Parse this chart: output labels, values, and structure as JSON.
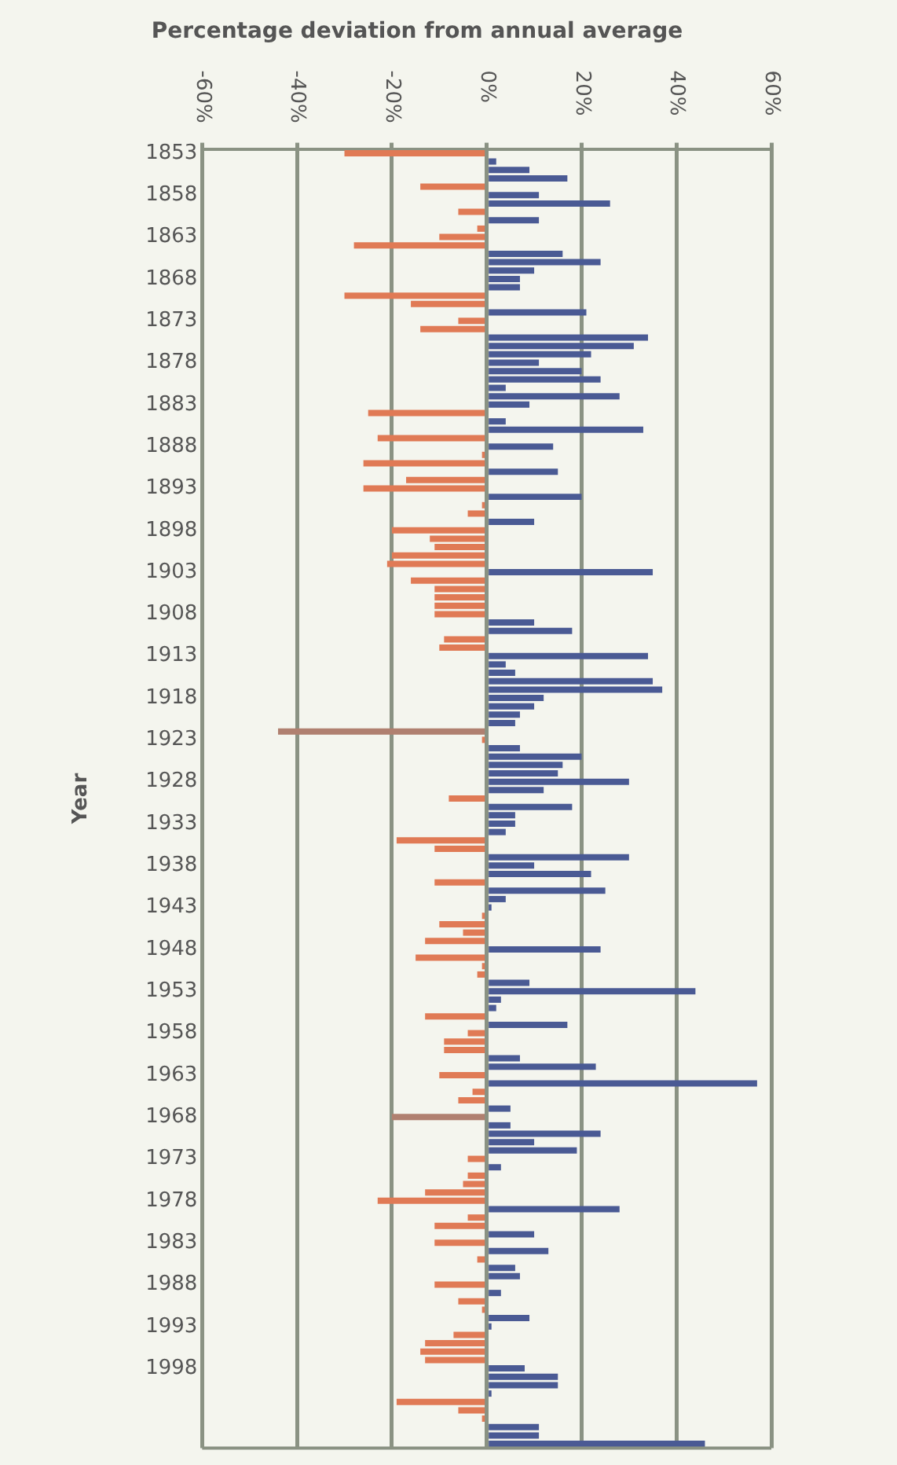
{
  "chart_data": {
    "type": "bar",
    "orientation": "horizontal",
    "title": "Percentage deviation from annual average",
    "ylabel": "Year",
    "categories": [
      "1853",
      null,
      null,
      null,
      null,
      "1858",
      null,
      null,
      null,
      null,
      "1863",
      null,
      null,
      null,
      null,
      "1868",
      null,
      null,
      null,
      null,
      "1873",
      null,
      null,
      null,
      null,
      "1878",
      null,
      null,
      null,
      null,
      "1883",
      null,
      null,
      null,
      null,
      "1888",
      null,
      null,
      null,
      null,
      "1893",
      null,
      null,
      null,
      null,
      "1898",
      null,
      null,
      null,
      null,
      "1903",
      null,
      null,
      null,
      null,
      "1908",
      null,
      null,
      null,
      null,
      "1913",
      null,
      null,
      null,
      null,
      "1918",
      null,
      null,
      null,
      null,
      "1923",
      null,
      null,
      null,
      null,
      "1928",
      null,
      null,
      null,
      null,
      "1933",
      null,
      null,
      null,
      null,
      "1938",
      null,
      null,
      null,
      null,
      "1943",
      null,
      null,
      null,
      null,
      "1948",
      null,
      null,
      null,
      null,
      "1953",
      null,
      null,
      null,
      null,
      "1958",
      null,
      null,
      null,
      null,
      "1963",
      null,
      null,
      null,
      null,
      "1968",
      null,
      null,
      null,
      null,
      "1973",
      null,
      null,
      null,
      null,
      "1978",
      null,
      null,
      null,
      null,
      "1983",
      null,
      null,
      null,
      null,
      "1988",
      null,
      null,
      null,
      null,
      "1993",
      null,
      null,
      null,
      null,
      "1998",
      null,
      null,
      null,
      null,
      null,
      null,
      null,
      null,
      null
    ],
    "values": [
      -30,
      2,
      9,
      17,
      -14,
      11,
      26,
      -6,
      11,
      -2,
      -10,
      -28,
      16,
      24,
      10,
      7,
      7,
      -30,
      -16,
      21,
      -6,
      -14,
      34,
      31,
      22,
      11,
      20,
      24,
      4,
      28,
      9,
      -25,
      4,
      33,
      -23,
      14,
      -1,
      -26,
      15,
      -17,
      -26,
      20,
      -1,
      -4,
      10,
      -20,
      -12,
      -11,
      -20,
      -21,
      35,
      -16,
      -11,
      -11,
      -11,
      -11,
      10,
      18,
      -9,
      -10,
      34,
      4,
      6,
      35,
      37,
      12,
      10,
      7,
      6,
      -44,
      -1,
      7,
      20,
      16,
      15,
      30,
      12,
      -8,
      18,
      6,
      6,
      4,
      -19,
      -11,
      30,
      10,
      22,
      -11,
      25,
      4,
      1,
      -1,
      -10,
      -5,
      -13,
      24,
      -15,
      -1,
      -2,
      9,
      44,
      3,
      2,
      -13,
      17,
      -4,
      -9,
      -9,
      7,
      23,
      -10,
      57,
      -3,
      -6,
      5,
      -20,
      5,
      24,
      10,
      19,
      -4,
      3,
      -4,
      -5,
      -13,
      -23,
      28,
      -4,
      -11,
      10,
      -11,
      13,
      -2,
      6,
      7,
      -11,
      3,
      -6,
      -1,
      9,
      1,
      -7,
      -13,
      -14,
      -13,
      8,
      15,
      15,
      1,
      -19,
      -6,
      -1,
      11,
      11,
      46
    ],
    "colors": [
      "#e07a55",
      "#4a5a94",
      "#4a5a94",
      "#4a5a94",
      "#e07a55",
      "#4a5a94",
      "#4a5a94",
      "#e07a55",
      "#4a5a94",
      "#e07a55",
      "#e07a55",
      "#e07a55",
      "#4a5a94",
      "#4a5a94",
      "#4a5a94",
      "#4a5a94",
      "#4a5a94",
      "#e07a55",
      "#e07a55",
      "#4a5a94",
      "#e07a55",
      "#e07a55",
      "#4a5a94",
      "#4a5a94",
      "#4a5a94",
      "#4a5a94",
      "#4a5a94",
      "#4a5a94",
      "#4a5a94",
      "#4a5a94",
      "#4a5a94",
      "#e07a55",
      "#4a5a94",
      "#4a5a94",
      "#e07a55",
      "#4a5a94",
      "#e07a55",
      "#e07a55",
      "#4a5a94",
      "#e07a55",
      "#e07a55",
      "#4a5a94",
      "#e07a55",
      "#e07a55",
      "#4a5a94",
      "#e07a55",
      "#e07a55",
      "#e07a55",
      "#e07a55",
      "#e07a55",
      "#4a5a94",
      "#e07a55",
      "#e07a55",
      "#e07a55",
      "#e07a55",
      "#e07a55",
      "#4a5a94",
      "#4a5a94",
      "#e07a55",
      "#e07a55",
      "#4a5a94",
      "#4a5a94",
      "#4a5a94",
      "#4a5a94",
      "#4a5a94",
      "#4a5a94",
      "#4a5a94",
      "#4a5a94",
      "#4a5a94",
      "#b08070",
      "#e07a55",
      "#4a5a94",
      "#4a5a94",
      "#4a5a94",
      "#4a5a94",
      "#4a5a94",
      "#4a5a94",
      "#e07a55",
      "#4a5a94",
      "#4a5a94",
      "#4a5a94",
      "#4a5a94",
      "#e07a55",
      "#e07a55",
      "#4a5a94",
      "#4a5a94",
      "#4a5a94",
      "#e07a55",
      "#4a5a94",
      "#4a5a94",
      "#4a5a94",
      "#e07a55",
      "#e07a55",
      "#e07a55",
      "#e07a55",
      "#4a5a94",
      "#e07a55",
      "#e07a55",
      "#e07a55",
      "#4a5a94",
      "#4a5a94",
      "#4a5a94",
      "#4a5a94",
      "#e07a55",
      "#4a5a94",
      "#e07a55",
      "#e07a55",
      "#e07a55",
      "#4a5a94",
      "#4a5a94",
      "#e07a55",
      "#4a5a94",
      "#e07a55",
      "#e07a55",
      "#4a5a94",
      "#b08070",
      "#4a5a94",
      "#4a5a94",
      "#4a5a94",
      "#4a5a94",
      "#e07a55",
      "#4a5a94",
      "#e07a55",
      "#e07a55",
      "#e07a55",
      "#e07a55",
      "#4a5a94",
      "#e07a55",
      "#e07a55",
      "#4a5a94",
      "#e07a55",
      "#4a5a94",
      "#e07a55",
      "#4a5a94",
      "#4a5a94",
      "#e07a55",
      "#4a5a94",
      "#e07a55",
      "#e07a55",
      "#4a5a94",
      "#4a5a94",
      "#e07a55",
      "#e07a55",
      "#e07a55",
      "#e07a55",
      "#4a5a94",
      "#4a5a94",
      "#4a5a94",
      "#4a5a94",
      "#e07a55",
      "#e07a55",
      "#e07a55",
      "#4a5a94",
      "#4a5a94",
      "#4a5a94"
    ],
    "xlim": [
      -60,
      60
    ],
    "xticks": [
      {
        "value": -60,
        "label": "-60%"
      },
      {
        "value": -40,
        "label": "-40%"
      },
      {
        "value": -20,
        "label": "-20%"
      },
      {
        "value": 0,
        "label": "0%"
      },
      {
        "value": 20,
        "label": "20%"
      },
      {
        "value": 40,
        "label": "40%"
      },
      {
        "value": 60,
        "label": "60%"
      }
    ],
    "grid": "x"
  }
}
